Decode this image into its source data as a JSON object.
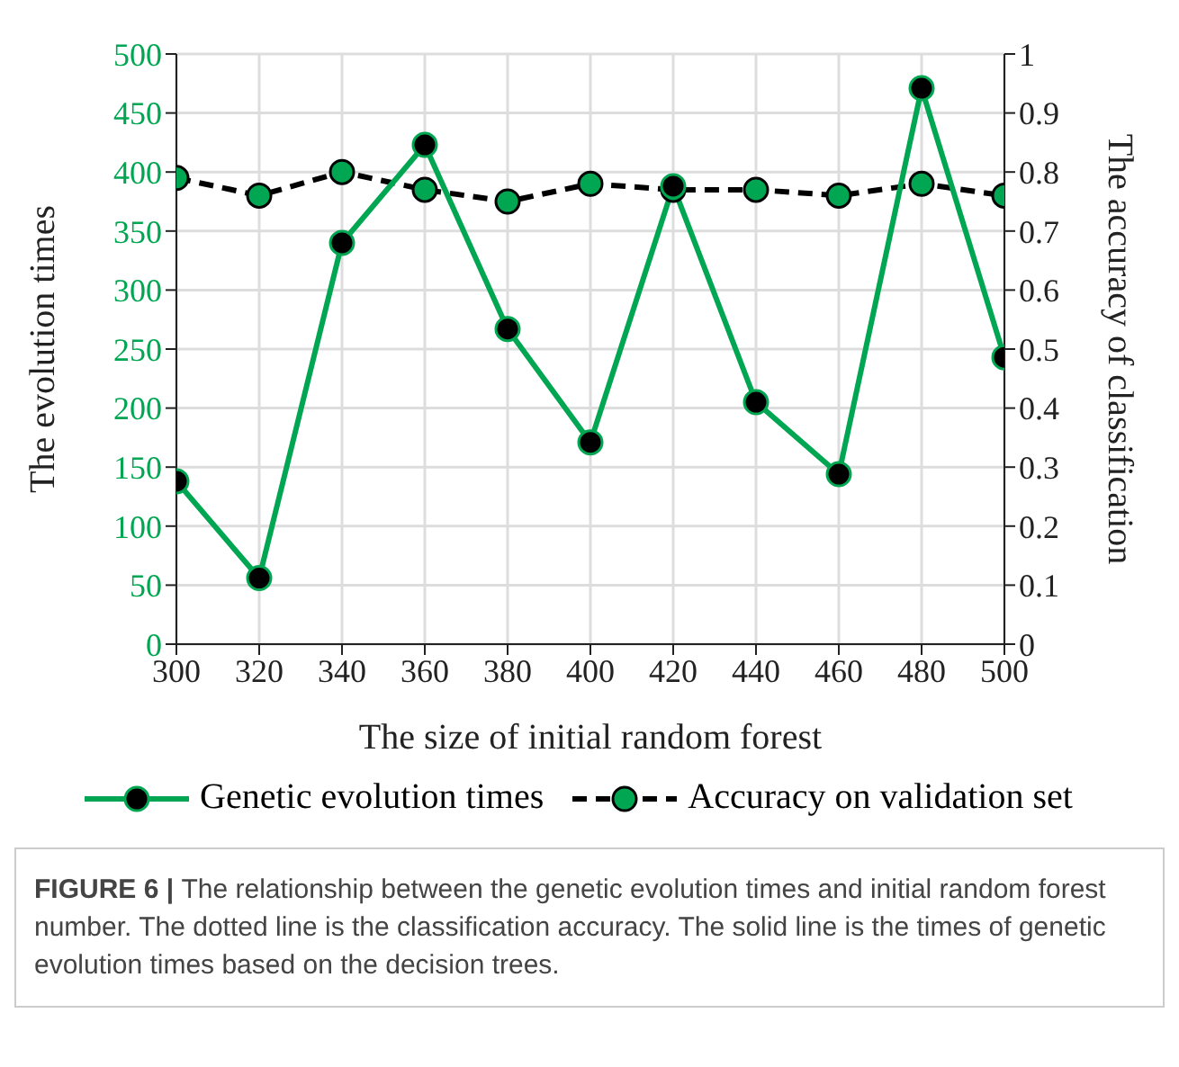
{
  "chart_data": {
    "type": "line",
    "xlabel": "The size of initial random forest",
    "ylabel": "The evolution times",
    "y2label": "The accuracy of classification",
    "x": [
      300,
      320,
      340,
      360,
      380,
      400,
      420,
      440,
      460,
      480,
      500
    ],
    "xlim": [
      300,
      500
    ],
    "xticks": [
      300,
      320,
      340,
      360,
      380,
      400,
      420,
      440,
      460,
      480,
      500
    ],
    "ylim": [
      0,
      500
    ],
    "yticks": [
      0,
      50,
      100,
      150,
      200,
      250,
      300,
      350,
      400,
      450,
      500
    ],
    "y2lim": [
      0,
      1
    ],
    "y2ticks": [
      0,
      0.1,
      0.2,
      0.3,
      0.4,
      0.5,
      0.6,
      0.7,
      0.8,
      0.9,
      1
    ],
    "series": [
      {
        "name": "Genetic evolution times",
        "color": "#00a651",
        "line_style": "solid",
        "values": [
          138,
          56,
          340,
          423,
          267,
          171,
          388,
          205,
          144,
          471,
          243
        ]
      },
      {
        "name": "Accuracy on validation set",
        "color": "#000000",
        "line_style": "dashed",
        "axis": "y2",
        "values": [
          0.79,
          0.76,
          0.8,
          0.77,
          0.75,
          0.78,
          0.77,
          0.77,
          0.76,
          0.78,
          0.76
        ]
      }
    ],
    "marker": "circle",
    "grid": true,
    "legend": "bottom",
    "annotations": [
      "FIGURE 6 |",
      "The relationship between the genetic evolution times and initial random forest number. The dotted line is the classification accuracy. The solid line is the times of genetic evolution times based on the decision trees."
    ]
  }
}
